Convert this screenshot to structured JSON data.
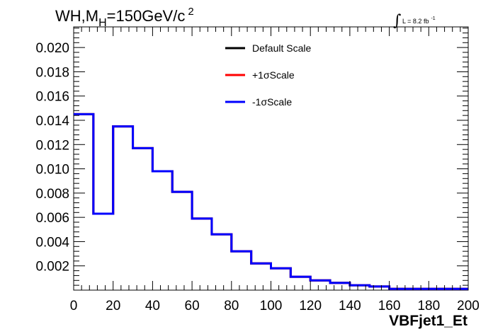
{
  "chart_data": {
    "type": "line",
    "title": "WH,M",
    "title_sub": "H",
    "title_rest": "=150GeV/c",
    "title_sup": "2",
    "lumi_text": "L = 8.2 fb",
    "lumi_sup": "-1",
    "xlabel": "VBFjet1_Et",
    "ylabel": "",
    "xlim": [
      0,
      200
    ],
    "ylim": [
      0,
      0.0217
    ],
    "x_ticks": [
      "0",
      "20",
      "40",
      "60",
      "80",
      "100",
      "120",
      "140",
      "160",
      "180",
      "200"
    ],
    "y_ticks": [
      "0.002",
      "0.004",
      "0.006",
      "0.008",
      "0.010",
      "0.012",
      "0.014",
      "0.016",
      "0.018",
      "0.020"
    ],
    "bin_edges": [
      0,
      10,
      20,
      30,
      40,
      50,
      60,
      70,
      80,
      90,
      100,
      110,
      120,
      130,
      140,
      150,
      160,
      170,
      180,
      190,
      200
    ],
    "legend_position": "top-center",
    "series": [
      {
        "name": "Default Scale",
        "color": "#000000",
        "values": [
          0.0145,
          0.0063,
          0.0135,
          0.0117,
          0.0098,
          0.0081,
          0.0059,
          0.0046,
          0.0032,
          0.0022,
          0.0018,
          0.0011,
          0.0008,
          0.0006,
          0.0004,
          0.0003,
          0.0001,
          0.0001,
          0.0001,
          0.0001
        ]
      },
      {
        "name": "+1σScale",
        "color": "#ff0000",
        "values": [
          0.0145,
          0.0063,
          0.0135,
          0.0117,
          0.0098,
          0.0081,
          0.0059,
          0.0046,
          0.0032,
          0.0022,
          0.0018,
          0.0011,
          0.0008,
          0.0006,
          0.0004,
          0.0003,
          0.0001,
          0.0001,
          0.0001,
          0.0001
        ]
      },
      {
        "name": "-1σScale",
        "color": "#0000ff",
        "values": [
          0.0145,
          0.0063,
          0.0135,
          0.0117,
          0.0098,
          0.0081,
          0.0059,
          0.0046,
          0.0032,
          0.0022,
          0.0018,
          0.0011,
          0.0008,
          0.0006,
          0.0004,
          0.0003,
          0.0001,
          0.0001,
          0.0001,
          0.0001
        ]
      }
    ]
  }
}
